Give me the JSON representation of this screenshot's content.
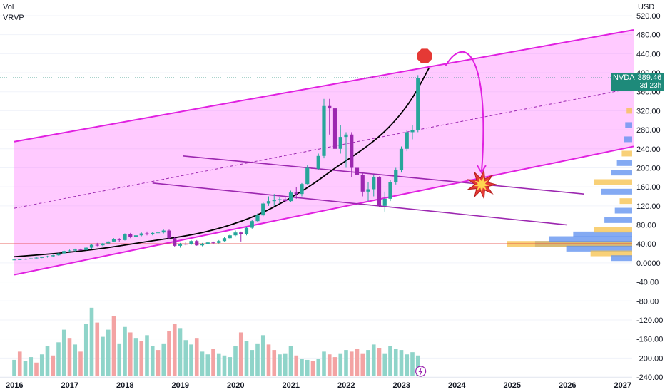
{
  "legend": {
    "vol": "Vol",
    "vrvp": "VRVP"
  },
  "currency": "USD",
  "price_label": {
    "symbol": "NVDA",
    "price": "389.46",
    "countdown": "3d 23h"
  },
  "colors": {
    "up": "#26a69a",
    "down": "#9c27b0",
    "channel_fill": "#ff66ff",
    "channel_line": "#e020e0",
    "trend_purple": "#9c27b0",
    "curve": "#000000",
    "support": "#e53935",
    "vol_up": "#8fd4c9",
    "vol_down": "#f3a3a3"
  },
  "chart_data": {
    "type": "candlestick",
    "y_axis": {
      "ticks": [
        "520.00",
        "480.00",
        "440.00",
        "400.00",
        "360.00",
        "320.00",
        "280.00",
        "240.00",
        "200.00",
        "160.00",
        "120.00",
        "80.00",
        "40.00",
        "0.0000",
        "-40.00",
        "-80.00",
        "-120.00",
        "-160.00",
        "-200.00",
        "-240.00"
      ],
      "range": [
        -240,
        520
      ]
    },
    "x_axis": {
      "ticks": [
        "2016",
        "2017",
        "2018",
        "2019",
        "2020",
        "2021",
        "2022",
        "2023",
        "2024",
        "2025",
        "2026",
        "2027"
      ],
      "range": [
        2016.0,
        2027.2
      ]
    },
    "candles": [
      [
        2016.0,
        7,
        8,
        6,
        7
      ],
      [
        2016.1,
        7,
        8,
        6,
        7.5
      ],
      [
        2016.2,
        7.5,
        9,
        7,
        8.5
      ],
      [
        2016.3,
        8.5,
        10,
        8,
        9.5
      ],
      [
        2016.4,
        9.5,
        12,
        9,
        11
      ],
      [
        2016.5,
        11,
        13,
        10,
        12
      ],
      [
        2016.6,
        12,
        15,
        11,
        14
      ],
      [
        2016.7,
        14,
        17,
        13,
        16
      ],
      [
        2016.8,
        16,
        21,
        15,
        20
      ],
      [
        2016.9,
        20,
        26,
        19,
        25
      ],
      [
        2017.0,
        25,
        28,
        23,
        26
      ],
      [
        2017.1,
        26,
        30,
        24,
        28
      ],
      [
        2017.2,
        28,
        30,
        26,
        27
      ],
      [
        2017.3,
        27,
        33,
        26,
        32
      ],
      [
        2017.4,
        32,
        40,
        30,
        38
      ],
      [
        2017.5,
        38,
        42,
        35,
        37
      ],
      [
        2017.6,
        37,
        42,
        35,
        41
      ],
      [
        2017.7,
        41,
        46,
        40,
        45
      ],
      [
        2017.8,
        45,
        52,
        44,
        50
      ],
      [
        2017.9,
        50,
        52,
        45,
        48
      ],
      [
        2018.0,
        48,
        62,
        47,
        60
      ],
      [
        2018.1,
        60,
        63,
        52,
        55
      ],
      [
        2018.2,
        55,
        60,
        52,
        58
      ],
      [
        2018.3,
        58,
        64,
        56,
        62
      ],
      [
        2018.4,
        62,
        66,
        58,
        60
      ],
      [
        2018.5,
        60,
        65,
        58,
        63
      ],
      [
        2018.6,
        63,
        66,
        60,
        64
      ],
      [
        2018.7,
        64,
        70,
        62,
        68
      ],
      [
        2018.8,
        68,
        70,
        50,
        52
      ],
      [
        2018.9,
        52,
        54,
        33,
        36
      ],
      [
        2019.0,
        36,
        42,
        32,
        40
      ],
      [
        2019.1,
        40,
        44,
        37,
        39
      ],
      [
        2019.2,
        39,
        48,
        38,
        46
      ],
      [
        2019.3,
        46,
        48,
        36,
        37
      ],
      [
        2019.4,
        37,
        42,
        35,
        40
      ],
      [
        2019.5,
        40,
        44,
        39,
        43
      ],
      [
        2019.6,
        43,
        45,
        40,
        42
      ],
      [
        2019.7,
        42,
        48,
        41,
        46
      ],
      [
        2019.8,
        46,
        54,
        45,
        52
      ],
      [
        2019.9,
        52,
        60,
        50,
        58
      ],
      [
        2020.0,
        58,
        68,
        56,
        64
      ],
      [
        2020.1,
        64,
        66,
        45,
        60
      ],
      [
        2020.2,
        60,
        75,
        58,
        74
      ],
      [
        2020.3,
        74,
        90,
        72,
        88
      ],
      [
        2020.4,
        88,
        104,
        86,
        100
      ],
      [
        2020.5,
        100,
        128,
        98,
        125
      ],
      [
        2020.6,
        125,
        140,
        120,
        130
      ],
      [
        2020.7,
        130,
        145,
        120,
        133
      ],
      [
        2020.8,
        133,
        138,
        125,
        134
      ],
      [
        2020.9,
        134,
        140,
        128,
        130
      ],
      [
        2021.0,
        130,
        152,
        128,
        148
      ],
      [
        2021.1,
        148,
        160,
        135,
        145
      ],
      [
        2021.2,
        145,
        168,
        140,
        166
      ],
      [
        2021.3,
        166,
        205,
        165,
        200
      ],
      [
        2021.4,
        200,
        210,
        185,
        198
      ],
      [
        2021.5,
        198,
        230,
        195,
        225
      ],
      [
        2021.6,
        225,
        345,
        220,
        330
      ],
      [
        2021.7,
        330,
        345,
        270,
        325
      ],
      [
        2021.8,
        325,
        330,
        240,
        240
      ],
      [
        2021.9,
        240,
        290,
        230,
        265
      ],
      [
        2022.0,
        265,
        275,
        200,
        270
      ],
      [
        2022.1,
        270,
        275,
        180,
        200
      ],
      [
        2022.2,
        200,
        210,
        150,
        185
      ],
      [
        2022.3,
        185,
        190,
        140,
        150
      ],
      [
        2022.4,
        150,
        170,
        130,
        155
      ],
      [
        2022.5,
        155,
        185,
        140,
        180
      ],
      [
        2022.6,
        180,
        182,
        118,
        120
      ],
      [
        2022.7,
        120,
        150,
        108,
        135
      ],
      [
        2022.8,
        135,
        175,
        130,
        170
      ],
      [
        2022.9,
        170,
        200,
        165,
        195
      ],
      [
        2023.0,
        195,
        245,
        190,
        240
      ],
      [
        2023.1,
        240,
        280,
        235,
        275
      ],
      [
        2023.2,
        275,
        290,
        260,
        280
      ],
      [
        2023.3,
        280,
        395,
        275,
        389
      ]
    ],
    "volume": [
      [
        2016.0,
        30,
        "up"
      ],
      [
        2016.1,
        45,
        "down"
      ],
      [
        2016.2,
        28,
        "up"
      ],
      [
        2016.3,
        35,
        "up"
      ],
      [
        2016.4,
        25,
        "down"
      ],
      [
        2016.5,
        40,
        "up"
      ],
      [
        2016.6,
        55,
        "up"
      ],
      [
        2016.7,
        38,
        "down"
      ],
      [
        2016.8,
        62,
        "up"
      ],
      [
        2016.9,
        85,
        "up"
      ],
      [
        2017.0,
        70,
        "down"
      ],
      [
        2017.1,
        58,
        "up"
      ],
      [
        2017.2,
        45,
        "down"
      ],
      [
        2017.3,
        95,
        "up"
      ],
      [
        2017.4,
        125,
        "up"
      ],
      [
        2017.5,
        98,
        "down"
      ],
      [
        2017.6,
        72,
        "up"
      ],
      [
        2017.7,
        85,
        "up"
      ],
      [
        2017.8,
        110,
        "down"
      ],
      [
        2017.9,
        60,
        "up"
      ],
      [
        2018.0,
        90,
        "up"
      ],
      [
        2018.1,
        80,
        "down"
      ],
      [
        2018.2,
        70,
        "up"
      ],
      [
        2018.3,
        65,
        "down"
      ],
      [
        2018.4,
        75,
        "up"
      ],
      [
        2018.5,
        55,
        "up"
      ],
      [
        2018.6,
        48,
        "down"
      ],
      [
        2018.7,
        60,
        "up"
      ],
      [
        2018.8,
        82,
        "down"
      ],
      [
        2018.9,
        95,
        "down"
      ],
      [
        2019.0,
        88,
        "up"
      ],
      [
        2019.1,
        66,
        "up"
      ],
      [
        2019.2,
        58,
        "up"
      ],
      [
        2019.3,
        70,
        "down"
      ],
      [
        2019.4,
        45,
        "up"
      ],
      [
        2019.5,
        40,
        "up"
      ],
      [
        2019.6,
        50,
        "down"
      ],
      [
        2019.7,
        42,
        "up"
      ],
      [
        2019.8,
        38,
        "up"
      ],
      [
        2019.9,
        35,
        "up"
      ],
      [
        2020.0,
        55,
        "up"
      ],
      [
        2020.1,
        80,
        "down"
      ],
      [
        2020.2,
        65,
        "up"
      ],
      [
        2020.3,
        48,
        "up"
      ],
      [
        2020.4,
        60,
        "up"
      ],
      [
        2020.5,
        75,
        "up"
      ],
      [
        2020.6,
        58,
        "down"
      ],
      [
        2020.7,
        48,
        "down"
      ],
      [
        2020.8,
        40,
        "up"
      ],
      [
        2020.9,
        42,
        "up"
      ],
      [
        2021.0,
        55,
        "up"
      ],
      [
        2021.1,
        38,
        "down"
      ],
      [
        2021.2,
        32,
        "up"
      ],
      [
        2021.3,
        30,
        "up"
      ],
      [
        2021.4,
        28,
        "down"
      ],
      [
        2021.5,
        32,
        "up"
      ],
      [
        2021.6,
        45,
        "up"
      ],
      [
        2021.7,
        40,
        "down"
      ],
      [
        2021.8,
        35,
        "down"
      ],
      [
        2021.9,
        42,
        "up"
      ],
      [
        2022.0,
        48,
        "up"
      ],
      [
        2022.1,
        45,
        "down"
      ],
      [
        2022.2,
        50,
        "down"
      ],
      [
        2022.3,
        42,
        "down"
      ],
      [
        2022.4,
        48,
        "up"
      ],
      [
        2022.5,
        58,
        "up"
      ],
      [
        2022.6,
        52,
        "down"
      ],
      [
        2022.7,
        42,
        "up"
      ],
      [
        2022.8,
        55,
        "up"
      ],
      [
        2022.9,
        50,
        "up"
      ],
      [
        2023.0,
        48,
        "up"
      ],
      [
        2023.1,
        40,
        "up"
      ],
      [
        2023.2,
        44,
        "up"
      ],
      [
        2023.3,
        38,
        "up"
      ]
    ],
    "volume_max": 130,
    "channel": {
      "upper": [
        [
          2016.0,
          255
        ],
        [
          2027.2,
          490
        ]
      ],
      "lower": [
        [
          2016.0,
          -25
        ],
        [
          2027.2,
          245
        ]
      ],
      "mid": [
        [
          2016.0,
          115
        ],
        [
          2027.2,
          368
        ]
      ]
    },
    "trendlines": [
      [
        [
          2019.05,
          225
        ],
        [
          2026.3,
          145
        ]
      ],
      [
        [
          2018.5,
          168
        ],
        [
          2026.0,
          80
        ]
      ]
    ],
    "support_level": 40,
    "last_price": 389.46,
    "curve": [
      [
        2016.0,
        13
      ],
      [
        2016.8,
        20
      ],
      [
        2017.6,
        30
      ],
      [
        2018.4,
        45
      ],
      [
        2019.2,
        58
      ],
      [
        2019.8,
        75
      ],
      [
        2020.4,
        100
      ],
      [
        2020.9,
        130
      ],
      [
        2021.4,
        165
      ],
      [
        2021.8,
        200
      ],
      [
        2022.2,
        230
      ],
      [
        2022.6,
        265
      ],
      [
        2022.9,
        300
      ],
      [
        2023.2,
        345
      ],
      [
        2023.5,
        410
      ]
    ],
    "arrow": [
      [
        2023.8,
        415
      ],
      [
        2024.2,
        490
      ],
      [
        2024.6,
        420
      ],
      [
        2024.45,
        190
      ]
    ],
    "stop_marker": [
      2023.42,
      435
    ],
    "explosion_marker": [
      2024.45,
      165
    ],
    "volume_profile": [
      [
        40,
        140,
        "up"
      ],
      [
        40,
        180,
        "down"
      ],
      [
        30,
        95,
        "up"
      ],
      [
        50,
        120,
        "up"
      ],
      [
        20,
        60,
        "down"
      ],
      [
        60,
        85,
        "up"
      ],
      [
        70,
        55,
        "down"
      ],
      [
        90,
        40,
        "up"
      ],
      [
        110,
        25,
        "up"
      ],
      [
        130,
        18,
        "down"
      ],
      [
        150,
        45,
        "up"
      ],
      [
        170,
        55,
        "down"
      ],
      [
        190,
        30,
        "up"
      ],
      [
        210,
        22,
        "up"
      ],
      [
        230,
        15,
        "down"
      ],
      [
        260,
        12,
        "up"
      ],
      [
        290,
        10,
        "up"
      ],
      [
        320,
        8,
        "down"
      ],
      [
        10,
        30,
        "up"
      ]
    ]
  }
}
